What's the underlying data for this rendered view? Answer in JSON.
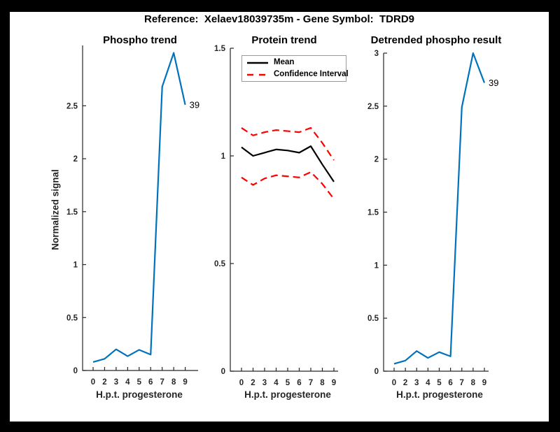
{
  "figure": {
    "title": "Reference:  Xelaev18039735m - Gene Symbol:  TDRD9",
    "background_color": "#000000",
    "canvas_color": "#ffffff"
  },
  "colors": {
    "line_blue": "#0072BD",
    "ci_red": "#FF0000",
    "mean_black": "#000000",
    "axis_gray": "#262626"
  },
  "chart_data": [
    {
      "type": "line",
      "title": "Phospho trend",
      "xlabel": "H.p.t. progesterone",
      "ylabel": "Normalized signal",
      "x_tick_labels": [
        "0",
        "2",
        "3",
        "4",
        "5",
        "6",
        "7",
        "8",
        "9"
      ],
      "y_ticks": [
        0,
        0.5,
        1,
        1.5,
        2,
        2.5
      ],
      "y_tick_labels": [
        "0",
        "0.5",
        "1",
        "1.5",
        "2",
        "2.5"
      ],
      "ylim": [
        0,
        3.07
      ],
      "grid": false,
      "series": [
        {
          "name": "phospho-signal",
          "color": "#0072BD",
          "style": "solid",
          "values": [
            0.08,
            0.11,
            0.2,
            0.135,
            0.195,
            0.15,
            2.68,
            3.0,
            2.51
          ]
        }
      ],
      "end_label": "39"
    },
    {
      "type": "line",
      "title": "Protein trend",
      "xlabel": "H.p.t. progesterone",
      "ylabel": "",
      "x_tick_labels": [
        "0",
        "2",
        "3",
        "4",
        "5",
        "6",
        "7",
        "8",
        "9"
      ],
      "y_ticks": [
        0,
        0.5,
        1,
        1.5
      ],
      "y_tick_labels": [
        "0",
        "0.5",
        "1",
        "1.5"
      ],
      "ylim": [
        0,
        1.5
      ],
      "grid": false,
      "legend": {
        "position": "top-left",
        "entries": [
          {
            "label": "Mean",
            "color": "#000000",
            "style": "solid"
          },
          {
            "label": "Confidence Interval",
            "color": "#FF0000",
            "style": "dashed"
          }
        ]
      },
      "series": [
        {
          "name": "mean",
          "color": "#000000",
          "style": "solid",
          "values": [
            1.04,
            1.0,
            1.015,
            1.03,
            1.025,
            1.015,
            1.045,
            0.96,
            0.88
          ]
        },
        {
          "name": "ci-upper",
          "color": "#FF0000",
          "style": "dashed",
          "values": [
            1.13,
            1.095,
            1.11,
            1.12,
            1.115,
            1.11,
            1.13,
            1.06,
            0.98
          ]
        },
        {
          "name": "ci-lower",
          "color": "#FF0000",
          "style": "dashed",
          "values": [
            0.9,
            0.865,
            0.895,
            0.91,
            0.905,
            0.9,
            0.925,
            0.87,
            0.8
          ]
        }
      ]
    },
    {
      "type": "line",
      "title": "Detrended phospho result",
      "xlabel": "H.p.t. progesterone",
      "ylabel": "",
      "x_tick_labels": [
        "0",
        "2",
        "3",
        "4",
        "5",
        "6",
        "7",
        "8",
        "9"
      ],
      "y_ticks": [
        0,
        0.5,
        1,
        1.5,
        2,
        2.5,
        3
      ],
      "y_tick_labels": [
        "0",
        "0.5",
        "1",
        "1.5",
        "2",
        "2.5",
        "3"
      ],
      "ylim": [
        0,
        3.0
      ],
      "grid": false,
      "series": [
        {
          "name": "detrended-signal",
          "color": "#0072BD",
          "style": "solid",
          "values": [
            0.07,
            0.1,
            0.19,
            0.125,
            0.18,
            0.14,
            2.49,
            3.0,
            2.72
          ]
        }
      ],
      "end_label": "39"
    }
  ]
}
